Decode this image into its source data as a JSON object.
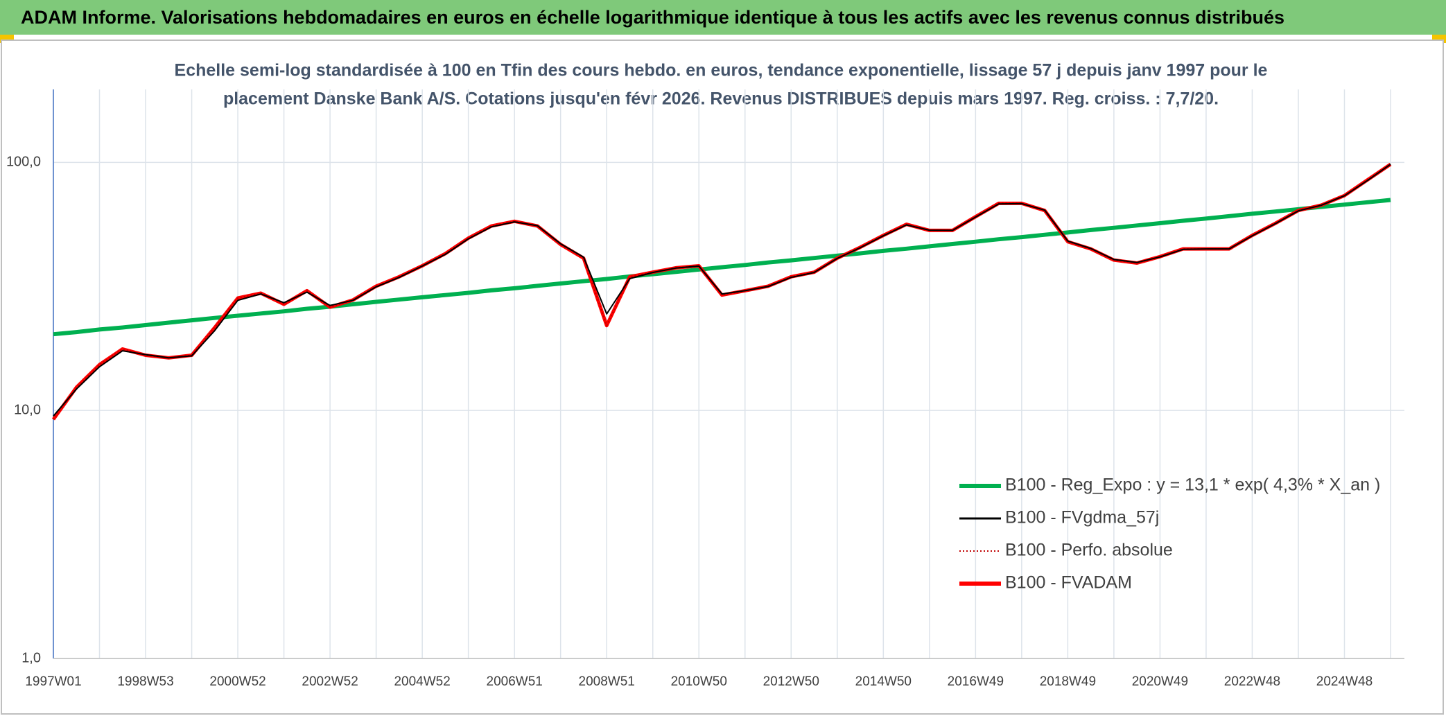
{
  "header": {
    "title": "ADAM Informe. Valorisations hebdomadaires en euros en échelle logarithmique identique à tous les actifs avec les revenus connus distribués"
  },
  "chart_data": {
    "type": "line",
    "title": [
      "Echelle semi-log standardisée à 100 en Tfin des cours hebdo. en euros, tendance exponentielle, lissage 57 j depuis janv 1997 pour le",
      "placement Danske Bank A/S. Cotations jusqu'en févr 2026. Revenus DISTRIBUES depuis mars 1997. Reg. croiss. : 7,7/20."
    ],
    "categories": [
      "1997W01",
      null,
      null,
      null,
      "1998W53",
      null,
      null,
      null,
      "2000W52",
      null,
      null,
      null,
      "2002W52",
      null,
      null,
      null,
      "2004W52",
      null,
      null,
      null,
      "2006W51",
      null,
      null,
      null,
      "2008W51",
      null,
      null,
      null,
      "2010W50",
      null,
      null,
      null,
      "2012W50",
      null,
      null,
      null,
      "2014W50",
      null,
      null,
      null,
      "2016W49",
      null,
      null,
      null,
      "2018W49",
      null,
      null,
      null,
      "2020W49",
      null,
      null,
      null,
      "2022W48",
      null,
      null,
      null,
      "2024W48",
      null,
      null
    ],
    "log_scale": true,
    "ylim": [
      1,
      197
    ],
    "yticks": [
      {
        "value": 1,
        "label": "1,0"
      },
      {
        "value": 10,
        "label": "10,0"
      },
      {
        "value": 100,
        "label": "100,0"
      }
    ],
    "grid": true,
    "legend": "lower right",
    "series": [
      {
        "name": "B100 - Reg_Expo : y = 13,1 * exp( 4,3% *  X_an )",
        "color": "#00b050",
        "style": "solid",
        "values": [
          20.3,
          20.7,
          21.2,
          21.6,
          22.1,
          22.6,
          23.1,
          23.6,
          24.1,
          24.6,
          25.1,
          25.7,
          26.2,
          26.8,
          27.4,
          28.0,
          28.6,
          29.2,
          29.8,
          30.5,
          31.1,
          31.8,
          32.5,
          33.2,
          33.9,
          34.7,
          35.4,
          36.2,
          37.0,
          37.8,
          38.6,
          39.5,
          40.3,
          41.2,
          42.1,
          43.0,
          44.0,
          44.9,
          45.9,
          46.9,
          47.9,
          49.0,
          50.0,
          51.1,
          52.2,
          53.4,
          54.5,
          55.7,
          56.9,
          58.2,
          59.4,
          60.7,
          62.1,
          63.4,
          64.8,
          66.2,
          67.6,
          69.1,
          70.6
        ]
      },
      {
        "name": "B100 - FVgdma_57j",
        "color": "#000000",
        "style": "solid",
        "values": [
          9.5,
          12.2,
          15.0,
          17.4,
          16.8,
          16.3,
          16.6,
          21.0,
          27.8,
          29.5,
          27.2,
          30.0,
          26.5,
          27.8,
          31.5,
          34.4,
          38.2,
          42.6,
          49.2,
          55.0,
          57.6,
          55.6,
          47.0,
          41.5,
          24.5,
          34.0,
          36.0,
          37.5,
          38.2,
          29.5,
          30.4,
          31.6,
          34.4,
          36.0,
          41.0,
          45.3,
          50.6,
          56.0,
          53.3,
          53.2,
          60.2,
          68.0,
          68.2,
          64.2,
          48.2,
          45.0,
          40.6,
          39.5,
          41.6,
          44.6,
          44.8,
          44.8,
          50.6,
          56.6,
          63.8,
          67.2,
          73.4,
          84.6,
          98.3
        ]
      },
      {
        "name": "B100 - Perfo. absolue",
        "color": "#c00000",
        "style": "dotted",
        "values": [
          9.2,
          12.4,
          15.3,
          17.7,
          16.7,
          16.3,
          16.7,
          21.6,
          28.4,
          29.7,
          26.8,
          30.4,
          26.1,
          27.9,
          31.7,
          34.6,
          38.3,
          42.9,
          49.5,
          55.4,
          57.9,
          55.4,
          46.7,
          41.1,
          22.0,
          34.6,
          36.1,
          37.6,
          38.3,
          29.2,
          30.4,
          31.7,
          34.6,
          36.1,
          41.1,
          45.5,
          50.8,
          56.3,
          53.2,
          53.2,
          60.4,
          68.4,
          68.4,
          64.0,
          47.9,
          44.8,
          40.4,
          39.3,
          41.7,
          44.8,
          44.8,
          44.8,
          50.8,
          56.8,
          64.0,
          67.3,
          73.5,
          85.0,
          98.3
        ]
      },
      {
        "name": "B100 - FVADAM",
        "color": "#ff0000",
        "style": "solid",
        "values": [
          9.2,
          12.4,
          15.3,
          17.7,
          16.7,
          16.3,
          16.7,
          21.6,
          28.4,
          29.7,
          26.8,
          30.4,
          26.1,
          27.9,
          31.7,
          34.6,
          38.3,
          42.9,
          49.5,
          55.4,
          57.9,
          55.4,
          46.7,
          41.1,
          22.0,
          34.6,
          36.1,
          37.6,
          38.3,
          29.2,
          30.4,
          31.7,
          34.6,
          36.1,
          41.1,
          45.5,
          50.8,
          56.3,
          53.2,
          53.2,
          60.4,
          68.4,
          68.4,
          64.0,
          47.9,
          44.8,
          40.4,
          39.3,
          41.7,
          44.8,
          44.8,
          44.8,
          50.8,
          56.8,
          64.0,
          67.3,
          73.5,
          85.0,
          98.3
        ]
      }
    ]
  }
}
